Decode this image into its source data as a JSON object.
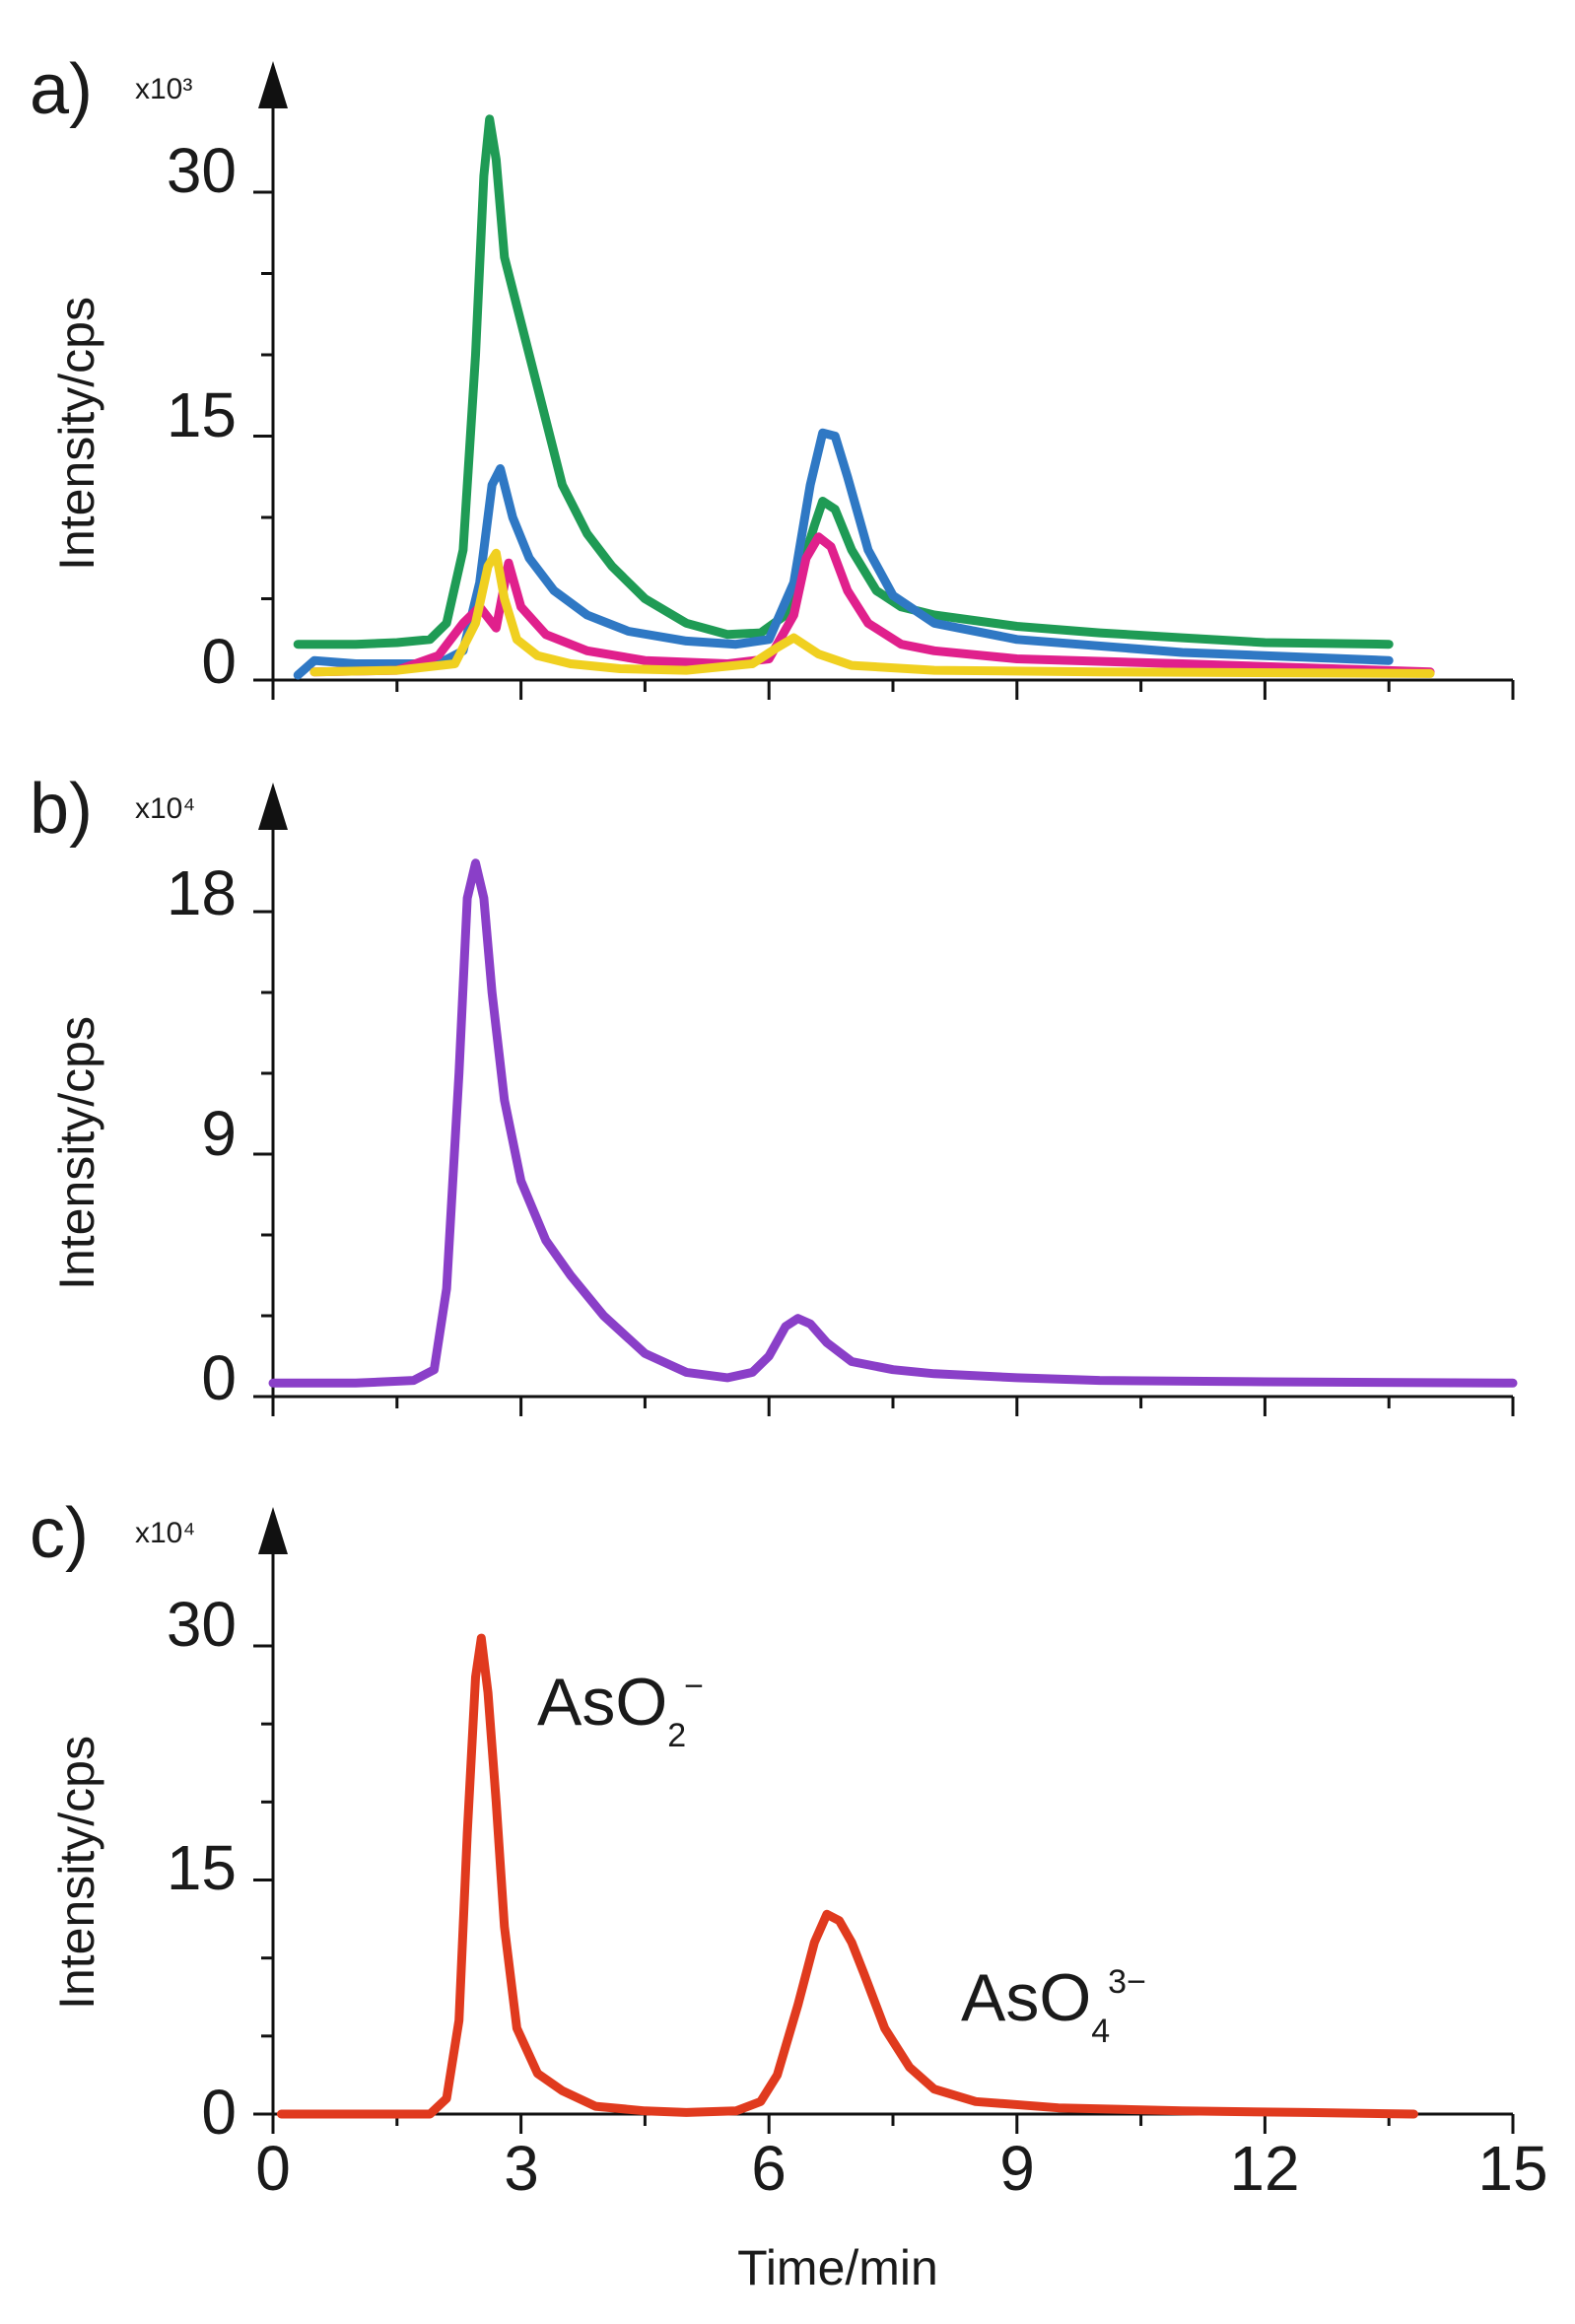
{
  "chart_data": [
    {
      "panel": "a)",
      "type": "line",
      "multiplier": "x10³",
      "ylabel": "Intensity/cps",
      "xlabel": "",
      "yticks": [
        "0",
        "15",
        "30"
      ],
      "ylim": [
        0,
        36
      ],
      "xlim": [
        0,
        15
      ],
      "grid": false,
      "series": [
        {
          "color": "#1f9b55",
          "x": [
            0.3,
            1.0,
            1.5,
            1.9,
            2.1,
            2.3,
            2.45,
            2.55,
            2.62,
            2.7,
            2.8,
            3.0,
            3.2,
            3.5,
            3.8,
            4.1,
            4.5,
            5.0,
            5.5,
            5.9,
            6.2,
            6.4,
            6.55,
            6.65,
            6.8,
            7.0,
            7.3,
            7.6,
            8.0,
            9.0,
            10.0,
            11.0,
            12.0,
            13.5
          ],
          "y": [
            2.2,
            2.2,
            2.3,
            2.5,
            3.5,
            8,
            20,
            31,
            34.5,
            32,
            26,
            22,
            18,
            12,
            9,
            7,
            5,
            3.5,
            2.8,
            2.9,
            4,
            7,
            9.5,
            11,
            10.5,
            8,
            5.5,
            4.5,
            4,
            3.3,
            2.9,
            2.6,
            2.3,
            2.2
          ]
        },
        {
          "color": "#2f78c4",
          "x": [
            0.3,
            0.5,
            1.0,
            2.0,
            2.3,
            2.5,
            2.65,
            2.75,
            2.9,
            3.1,
            3.4,
            3.8,
            4.3,
            5.0,
            5.6,
            6.0,
            6.3,
            6.5,
            6.65,
            6.8,
            6.95,
            7.2,
            7.5,
            8.0,
            9.0,
            11.0,
            13.5
          ],
          "y": [
            0.3,
            1.2,
            1.0,
            1.0,
            1.8,
            6,
            12,
            13,
            10,
            7.5,
            5.5,
            4,
            3,
            2.4,
            2.2,
            2.5,
            6,
            12,
            15.2,
            15,
            12.5,
            8,
            5.2,
            3.5,
            2.5,
            1.7,
            1.2
          ]
        },
        {
          "color": "#e0208c",
          "x": [
            0.5,
            1.5,
            2.0,
            2.3,
            2.5,
            2.7,
            2.85,
            3.0,
            3.3,
            3.8,
            4.5,
            5.5,
            6.0,
            6.3,
            6.45,
            6.6,
            6.75,
            6.95,
            7.2,
            7.6,
            8.0,
            9.0,
            11.0,
            14.0
          ],
          "y": [
            0.5,
            0.6,
            1.5,
            3.5,
            4.5,
            3.2,
            7.2,
            4.5,
            2.8,
            1.8,
            1.2,
            1.0,
            1.3,
            4,
            7.5,
            8.8,
            8.2,
            5.5,
            3.5,
            2.2,
            1.8,
            1.3,
            1.0,
            0.5
          ]
        },
        {
          "color": "#f0d020",
          "x": [
            0.5,
            1.5,
            2.2,
            2.45,
            2.6,
            2.7,
            2.8,
            2.95,
            3.2,
            3.6,
            4.2,
            5.0,
            5.8,
            6.1,
            6.3,
            6.6,
            7.0,
            8.0,
            10.0,
            14.0
          ],
          "y": [
            0.5,
            0.6,
            1.0,
            3.5,
            7,
            7.8,
            5,
            2.5,
            1.5,
            1.0,
            0.7,
            0.6,
            1.0,
            2.0,
            2.6,
            1.6,
            0.9,
            0.6,
            0.5,
            0.4
          ]
        }
      ]
    },
    {
      "panel": "b)",
      "type": "line",
      "multiplier": "x10⁴",
      "ylabel": "Intensity/cps",
      "xlabel": "",
      "yticks": [
        "0",
        "9",
        "18"
      ],
      "ylim": [
        0,
        21
      ],
      "xlim": [
        0,
        15
      ],
      "grid": false,
      "series": [
        {
          "color": "#8a3fc8",
          "x": [
            0.0,
            1.0,
            1.7,
            1.95,
            2.1,
            2.25,
            2.35,
            2.45,
            2.55,
            2.65,
            2.8,
            3.0,
            3.3,
            3.6,
            4.0,
            4.5,
            5.0,
            5.5,
            5.8,
            6.0,
            6.2,
            6.35,
            6.5,
            6.7,
            7.0,
            7.5,
            8.0,
            9.0,
            10.0,
            12.0,
            15.0
          ],
          "y": [
            0.5,
            0.5,
            0.6,
            1.0,
            4,
            12,
            18.5,
            19.8,
            18.5,
            15,
            11,
            8,
            5.8,
            4.5,
            3.0,
            1.6,
            0.9,
            0.7,
            0.9,
            1.5,
            2.6,
            2.9,
            2.7,
            2.0,
            1.3,
            1.0,
            0.85,
            0.7,
            0.6,
            0.55,
            0.5
          ]
        }
      ]
    },
    {
      "panel": "c)",
      "type": "line",
      "multiplier": "x10⁴",
      "ylabel": "Intensity/cps",
      "xlabel": "Time/min",
      "yticks": [
        "0",
        "15",
        "30"
      ],
      "xticks": [
        "0",
        "3",
        "6",
        "9",
        "12",
        "15"
      ],
      "ylim": [
        0,
        36
      ],
      "xlim": [
        0,
        15
      ],
      "grid": false,
      "annotations": [
        {
          "text": "AsO",
          "sub": "2",
          "sup": "−"
        },
        {
          "text": "AsO",
          "sub": "4",
          "sup": "3−"
        }
      ],
      "series": [
        {
          "color": "#e03a1e",
          "x": [
            0.1,
            1.0,
            1.9,
            2.1,
            2.25,
            2.35,
            2.45,
            2.52,
            2.6,
            2.7,
            2.8,
            2.95,
            3.2,
            3.5,
            3.9,
            4.5,
            5.0,
            5.6,
            5.9,
            6.1,
            6.35,
            6.55,
            6.7,
            6.85,
            7.0,
            7.15,
            7.4,
            7.7,
            8.0,
            8.5,
            9.5,
            11.0,
            12.5,
            13.8
          ],
          "y": [
            0.0,
            0.0,
            0.0,
            1.0,
            6,
            18,
            28,
            30.5,
            27,
            20,
            12,
            5.5,
            2.6,
            1.5,
            0.5,
            0.2,
            0.1,
            0.2,
            0.8,
            2.5,
            7,
            11,
            12.8,
            12.4,
            11,
            9,
            5.5,
            3.0,
            1.6,
            0.8,
            0.4,
            0.2,
            0.1,
            0.0
          ]
        }
      ]
    }
  ]
}
